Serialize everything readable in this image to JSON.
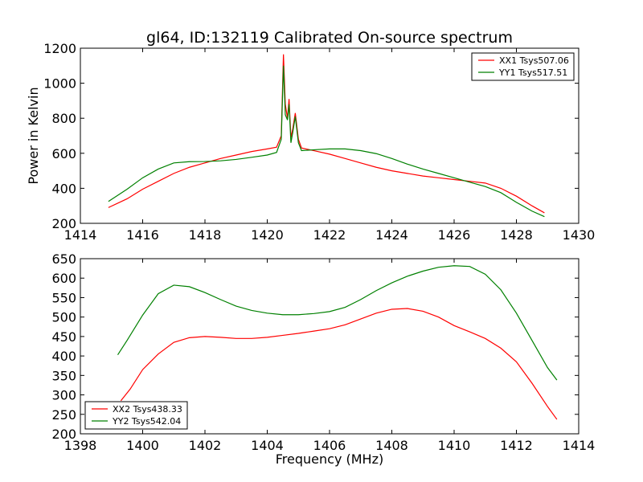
{
  "chart_data": [
    {
      "type": "line",
      "title": "gl64, ID:132119 Calibrated On-source spectrum",
      "xlabel": "",
      "ylabel": "Power in Kelvin",
      "xlim": [
        1414,
        1430
      ],
      "ylim": [
        200,
        1200
      ],
      "xticks": [
        1414,
        1416,
        1418,
        1420,
        1422,
        1424,
        1426,
        1428,
        1430
      ],
      "yticks": [
        200,
        400,
        600,
        800,
        1000,
        1200
      ],
      "legend_position": "top-right",
      "grid": false,
      "series": [
        {
          "name": "XX1 Tsys507.06",
          "color": "#ff0000",
          "points": [
            [
              1414.9,
              290
            ],
            [
              1415.5,
              340
            ],
            [
              1416.0,
              395
            ],
            [
              1416.5,
              440
            ],
            [
              1417.0,
              485
            ],
            [
              1417.5,
              520
            ],
            [
              1418.0,
              545
            ],
            [
              1418.5,
              570
            ],
            [
              1419.0,
              590
            ],
            [
              1419.5,
              610
            ],
            [
              1420.0,
              625
            ],
            [
              1420.3,
              635
            ],
            [
              1420.45,
              700
            ],
            [
              1420.52,
              1165
            ],
            [
              1420.58,
              880
            ],
            [
              1420.65,
              800
            ],
            [
              1420.7,
              910
            ],
            [
              1420.76,
              690
            ],
            [
              1420.82,
              740
            ],
            [
              1420.9,
              830
            ],
            [
              1421.0,
              680
            ],
            [
              1421.1,
              630
            ],
            [
              1421.5,
              615
            ],
            [
              1422.0,
              595
            ],
            [
              1422.5,
              570
            ],
            [
              1423.0,
              545
            ],
            [
              1423.5,
              520
            ],
            [
              1424.0,
              500
            ],
            [
              1424.5,
              485
            ],
            [
              1425.0,
              470
            ],
            [
              1425.5,
              460
            ],
            [
              1426.0,
              450
            ],
            [
              1426.5,
              440
            ],
            [
              1427.0,
              430
            ],
            [
              1427.5,
              400
            ],
            [
              1428.0,
              355
            ],
            [
              1428.5,
              300
            ],
            [
              1428.9,
              260
            ]
          ]
        },
        {
          "name": "YY1 Tsys517.51",
          "color": "#008000",
          "points": [
            [
              1414.9,
              325
            ],
            [
              1415.5,
              395
            ],
            [
              1416.0,
              460
            ],
            [
              1416.5,
              510
            ],
            [
              1417.0,
              545
            ],
            [
              1417.5,
              552
            ],
            [
              1418.0,
              553
            ],
            [
              1418.5,
              557
            ],
            [
              1419.0,
              565
            ],
            [
              1419.5,
              577
            ],
            [
              1420.0,
              590
            ],
            [
              1420.3,
              605
            ],
            [
              1420.45,
              680
            ],
            [
              1420.52,
              1100
            ],
            [
              1420.58,
              820
            ],
            [
              1420.65,
              790
            ],
            [
              1420.7,
              880
            ],
            [
              1420.76,
              660
            ],
            [
              1420.82,
              720
            ],
            [
              1420.9,
              810
            ],
            [
              1421.0,
              660
            ],
            [
              1421.1,
              615
            ],
            [
              1421.5,
              620
            ],
            [
              1422.0,
              625
            ],
            [
              1422.5,
              625
            ],
            [
              1423.0,
              615
            ],
            [
              1423.5,
              598
            ],
            [
              1424.0,
              570
            ],
            [
              1424.5,
              538
            ],
            [
              1425.0,
              510
            ],
            [
              1425.5,
              485
            ],
            [
              1426.0,
              460
            ],
            [
              1426.5,
              435
            ],
            [
              1427.0,
              410
            ],
            [
              1427.5,
              375
            ],
            [
              1428.0,
              320
            ],
            [
              1428.5,
              270
            ],
            [
              1428.9,
              238
            ]
          ]
        }
      ]
    },
    {
      "type": "line",
      "title": "",
      "xlabel": "Frequency (MHz)",
      "ylabel": "",
      "xlim": [
        1398,
        1414
      ],
      "ylim": [
        200,
        650
      ],
      "xticks": [
        1398,
        1400,
        1402,
        1404,
        1406,
        1408,
        1410,
        1412,
        1414
      ],
      "yticks": [
        200,
        250,
        300,
        350,
        400,
        450,
        500,
        550,
        600,
        650
      ],
      "legend_position": "bottom-left",
      "grid": false,
      "series": [
        {
          "name": "XX2 Tsys438.33",
          "color": "#ff0000",
          "points": [
            [
              1399.3,
              285
            ],
            [
              1399.6,
              315
            ],
            [
              1400.0,
              365
            ],
            [
              1400.5,
              405
            ],
            [
              1401.0,
              435
            ],
            [
              1401.5,
              447
            ],
            [
              1402.0,
              450
            ],
            [
              1402.5,
              448
            ],
            [
              1403.0,
              445
            ],
            [
              1403.5,
              445
            ],
            [
              1404.0,
              448
            ],
            [
              1404.5,
              453
            ],
            [
              1405.0,
              458
            ],
            [
              1405.5,
              464
            ],
            [
              1406.0,
              470
            ],
            [
              1406.5,
              480
            ],
            [
              1407.0,
              495
            ],
            [
              1407.5,
              510
            ],
            [
              1408.0,
              520
            ],
            [
              1408.5,
              522
            ],
            [
              1409.0,
              515
            ],
            [
              1409.5,
              500
            ],
            [
              1410.0,
              478
            ],
            [
              1410.5,
              462
            ],
            [
              1411.0,
              445
            ],
            [
              1411.5,
              420
            ],
            [
              1412.0,
              385
            ],
            [
              1412.5,
              330
            ],
            [
              1413.0,
              270
            ],
            [
              1413.3,
              237
            ]
          ]
        },
        {
          "name": "YY2 Tsys542.04",
          "color": "#008000",
          "points": [
            [
              1399.2,
              403
            ],
            [
              1399.5,
              440
            ],
            [
              1400.0,
              505
            ],
            [
              1400.5,
              560
            ],
            [
              1401.0,
              582
            ],
            [
              1401.5,
              578
            ],
            [
              1402.0,
              563
            ],
            [
              1402.5,
              545
            ],
            [
              1403.0,
              528
            ],
            [
              1403.5,
              517
            ],
            [
              1404.0,
              510
            ],
            [
              1404.5,
              506
            ],
            [
              1405.0,
              506
            ],
            [
              1405.5,
              509
            ],
            [
              1406.0,
              514
            ],
            [
              1406.5,
              525
            ],
            [
              1407.0,
              545
            ],
            [
              1407.5,
              568
            ],
            [
              1408.0,
              588
            ],
            [
              1408.5,
              605
            ],
            [
              1409.0,
              618
            ],
            [
              1409.5,
              628
            ],
            [
              1410.0,
              632
            ],
            [
              1410.5,
              630
            ],
            [
              1411.0,
              610
            ],
            [
              1411.5,
              570
            ],
            [
              1412.0,
              510
            ],
            [
              1412.5,
              440
            ],
            [
              1413.0,
              370
            ],
            [
              1413.3,
              338
            ]
          ]
        }
      ]
    }
  ]
}
